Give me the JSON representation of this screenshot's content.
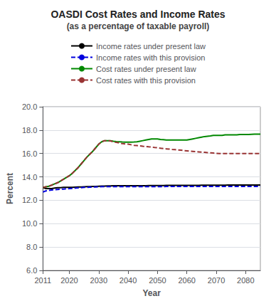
{
  "chart_data": {
    "type": "line",
    "title": "OASDI Cost Rates and Income Rates",
    "subtitle": "(as a percentage of taxable payroll)",
    "xlabel": "Year",
    "ylabel": "Percent",
    "x": [
      2011,
      2012,
      2013,
      2014,
      2015,
      2016,
      2017,
      2018,
      2019,
      2020,
      2021,
      2022,
      2023,
      2024,
      2025,
      2026,
      2027,
      2028,
      2029,
      2030,
      2031,
      2032,
      2033,
      2034,
      2035,
      2036,
      2037,
      2038,
      2039,
      2040,
      2041,
      2042,
      2043,
      2044,
      2045,
      2046,
      2047,
      2048,
      2049,
      2050,
      2051,
      2052,
      2053,
      2054,
      2055,
      2056,
      2057,
      2058,
      2059,
      2060,
      2061,
      2062,
      2063,
      2064,
      2065,
      2066,
      2067,
      2068,
      2069,
      2070,
      2071,
      2072,
      2073,
      2074,
      2075,
      2076,
      2077,
      2078,
      2079,
      2080,
      2081,
      2082,
      2083,
      2084,
      2085
    ],
    "series": [
      {
        "name": "Income rates under present law",
        "color": "#000000",
        "line_style": "solid",
        "values": [
          13.1,
          13.0,
          13.0,
          13.0,
          13.05,
          13.07,
          13.08,
          13.1,
          13.1,
          13.1,
          13.1,
          13.12,
          13.13,
          13.14,
          13.15,
          13.16,
          13.17,
          13.18,
          13.19,
          13.2,
          13.21,
          13.22,
          13.23,
          13.23,
          13.24,
          13.24,
          13.25,
          13.25,
          13.25,
          13.25,
          13.25,
          13.25,
          13.25,
          13.25,
          13.25,
          13.25,
          13.26,
          13.26,
          13.26,
          13.26,
          13.26,
          13.26,
          13.27,
          13.27,
          13.27,
          13.27,
          13.28,
          13.28,
          13.28,
          13.28,
          13.28,
          13.28,
          13.28,
          13.28,
          13.29,
          13.29,
          13.29,
          13.29,
          13.29,
          13.29,
          13.29,
          13.29,
          13.29,
          13.3,
          13.3,
          13.3,
          13.3,
          13.3,
          13.3,
          13.3,
          13.3,
          13.3,
          13.3,
          13.3,
          13.3
        ]
      },
      {
        "name": "Income rates with this provision",
        "color": "#0000dd",
        "line_style": "dashed",
        "values": [
          12.7,
          12.8,
          12.85,
          12.88,
          12.9,
          12.92,
          12.94,
          12.96,
          12.98,
          13.0,
          13.02,
          13.04,
          13.06,
          13.08,
          13.1,
          13.11,
          13.12,
          13.13,
          13.14,
          13.15,
          13.16,
          13.17,
          13.17,
          13.17,
          13.17,
          13.17,
          13.17,
          13.17,
          13.17,
          13.17,
          13.17,
          13.17,
          13.17,
          13.17,
          13.17,
          13.17,
          13.17,
          13.17,
          13.17,
          13.17,
          13.17,
          13.17,
          13.18,
          13.18,
          13.18,
          13.18,
          13.18,
          13.18,
          13.18,
          13.18,
          13.18,
          13.18,
          13.18,
          13.18,
          13.18,
          13.18,
          13.18,
          13.18,
          13.18,
          13.18,
          13.18,
          13.18,
          13.18,
          13.18,
          13.18,
          13.18,
          13.18,
          13.18,
          13.18,
          13.18,
          13.18,
          13.18,
          13.18,
          13.18,
          13.18
        ]
      },
      {
        "name": "Cost rates under present law",
        "color": "#008800",
        "line_style": "solid",
        "values": [
          13.1,
          13.15,
          13.2,
          13.3,
          13.4,
          13.5,
          13.65,
          13.8,
          13.95,
          14.1,
          14.3,
          14.55,
          14.8,
          15.1,
          15.4,
          15.7,
          15.95,
          16.2,
          16.5,
          16.8,
          17.0,
          17.1,
          17.1,
          17.1,
          17.05,
          17.02,
          17.0,
          16.98,
          16.97,
          16.97,
          16.97,
          16.98,
          17.0,
          17.05,
          17.1,
          17.15,
          17.2,
          17.25,
          17.25,
          17.25,
          17.2,
          17.18,
          17.15,
          17.15,
          17.15,
          17.15,
          17.15,
          17.15,
          17.15,
          17.15,
          17.2,
          17.25,
          17.3,
          17.35,
          17.4,
          17.45,
          17.48,
          17.5,
          17.55,
          17.55,
          17.55,
          17.55,
          17.6,
          17.6,
          17.6,
          17.6,
          17.6,
          17.62,
          17.63,
          17.63,
          17.63,
          17.64,
          17.65,
          17.65,
          17.65
        ]
      },
      {
        "name": "Cost rates with this provision",
        "color": "#993333",
        "line_style": "dashed",
        "values": [
          13.1,
          13.15,
          13.2,
          13.3,
          13.4,
          13.5,
          13.65,
          13.8,
          13.95,
          14.1,
          14.3,
          14.55,
          14.8,
          15.1,
          15.4,
          15.7,
          15.95,
          16.2,
          16.5,
          16.8,
          17.0,
          17.1,
          17.1,
          17.08,
          17.0,
          16.95,
          16.9,
          16.85,
          16.82,
          16.8,
          16.75,
          16.7,
          16.68,
          16.65,
          16.62,
          16.6,
          16.57,
          16.55,
          16.52,
          16.5,
          16.45,
          16.42,
          16.4,
          16.38,
          16.35,
          16.33,
          16.3,
          16.28,
          16.25,
          16.23,
          16.2,
          16.18,
          16.16,
          16.14,
          16.12,
          16.1,
          16.08,
          16.06,
          16.04,
          16.02,
          16.0,
          16.0,
          16.0,
          16.0,
          16.0,
          16.0,
          16.0,
          16.0,
          16.0,
          16.0,
          16.0,
          16.0,
          16.0,
          16.0,
          16.0
        ]
      }
    ],
    "xlim": [
      2011,
      2085
    ],
    "xticks": [
      2011,
      2020,
      2030,
      2040,
      2050,
      2060,
      2070,
      2080
    ],
    "ylim": [
      6.0,
      20.0
    ],
    "yticks": [
      {
        "value": 6.0,
        "label": "6.0"
      },
      {
        "value": 8.0,
        "label": "8.0"
      },
      {
        "value": 10.0,
        "label": "10.0"
      },
      {
        "value": 12.0,
        "label": "12.0"
      },
      {
        "value": 14.0,
        "label": "14.0"
      },
      {
        "value": 16.0,
        "label": "16.0"
      },
      {
        "value": 18.0,
        "label": "18.0"
      },
      {
        "value": 20.0,
        "label": "20.0"
      }
    ],
    "grid": true,
    "legend": "top"
  }
}
